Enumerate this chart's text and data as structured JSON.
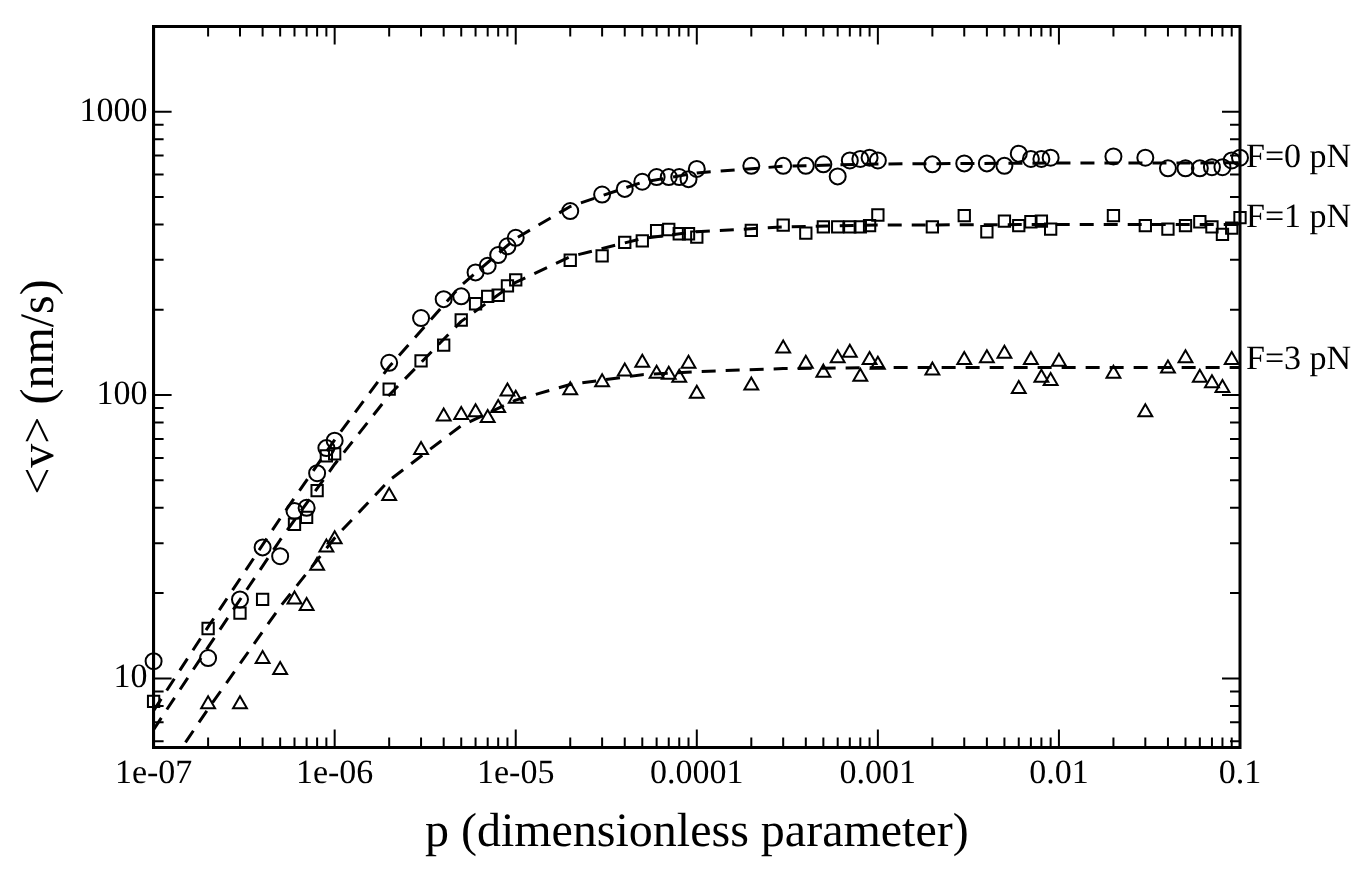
{
  "chart_data": {
    "type": "scatter",
    "xlabel": "p (dimensionless parameter)",
    "ylabel": "<v> (nm/s)",
    "log": "xy",
    "legend": "right",
    "xlim": [
      1e-07,
      0.1
    ],
    "ylim": [
      5.7,
      2000
    ],
    "xticks": [
      {
        "value": 1e-07,
        "label": "1e-07"
      },
      {
        "value": 2e-07,
        "label": null
      },
      {
        "value": 3e-07,
        "label": null
      },
      {
        "value": 4e-07,
        "label": null
      },
      {
        "value": 5e-07,
        "label": null
      },
      {
        "value": 6e-07,
        "label": null
      },
      {
        "value": 7e-07,
        "label": null
      },
      {
        "value": 8e-07,
        "label": null
      },
      {
        "value": 9e-07,
        "label": null
      },
      {
        "value": 1e-06,
        "label": "1e-06"
      },
      {
        "value": 2e-06,
        "label": null
      },
      {
        "value": 3e-06,
        "label": null
      },
      {
        "value": 4e-06,
        "label": null
      },
      {
        "value": 5e-06,
        "label": null
      },
      {
        "value": 6e-06,
        "label": null
      },
      {
        "value": 7e-06,
        "label": null
      },
      {
        "value": 8e-06,
        "label": null
      },
      {
        "value": 9e-06,
        "label": null
      },
      {
        "value": 1e-05,
        "label": "1e-05"
      },
      {
        "value": 2e-05,
        "label": null
      },
      {
        "value": 3e-05,
        "label": null
      },
      {
        "value": 4e-05,
        "label": null
      },
      {
        "value": 5e-05,
        "label": null
      },
      {
        "value": 6e-05,
        "label": null
      },
      {
        "value": 7e-05,
        "label": null
      },
      {
        "value": 8e-05,
        "label": null
      },
      {
        "value": 9e-05,
        "label": null
      },
      {
        "value": 0.0001,
        "label": "0.0001"
      },
      {
        "value": 0.0002,
        "label": null
      },
      {
        "value": 0.0003,
        "label": null
      },
      {
        "value": 0.0004,
        "label": null
      },
      {
        "value": 0.0005,
        "label": null
      },
      {
        "value": 0.0006,
        "label": null
      },
      {
        "value": 0.0007,
        "label": null
      },
      {
        "value": 0.0008,
        "label": null
      },
      {
        "value": 0.0009,
        "label": null
      },
      {
        "value": 0.001,
        "label": "0.001"
      },
      {
        "value": 0.002,
        "label": null
      },
      {
        "value": 0.003,
        "label": null
      },
      {
        "value": 0.004,
        "label": null
      },
      {
        "value": 0.005,
        "label": null
      },
      {
        "value": 0.006,
        "label": null
      },
      {
        "value": 0.007,
        "label": null
      },
      {
        "value": 0.008,
        "label": null
      },
      {
        "value": 0.009,
        "label": null
      },
      {
        "value": 0.01,
        "label": "0.01"
      },
      {
        "value": 0.02,
        "label": null
      },
      {
        "value": 0.03,
        "label": null
      },
      {
        "value": 0.04,
        "label": null
      },
      {
        "value": 0.05,
        "label": null
      },
      {
        "value": 0.06,
        "label": null
      },
      {
        "value": 0.07,
        "label": null
      },
      {
        "value": 0.08,
        "label": null
      },
      {
        "value": 0.09,
        "label": null
      },
      {
        "value": 0.1,
        "label": "0.1"
      }
    ],
    "yticks": [
      {
        "value": 6,
        "label": null
      },
      {
        "value": 7,
        "label": null
      },
      {
        "value": 8,
        "label": null
      },
      {
        "value": 9,
        "label": null
      },
      10,
      {
        "value": 20,
        "label": null
      },
      {
        "value": 30,
        "label": null
      },
      {
        "value": 40,
        "label": null
      },
      {
        "value": 50,
        "label": null
      },
      {
        "value": 60,
        "label": null
      },
      {
        "value": 70,
        "label": null
      },
      {
        "value": 80,
        "label": null
      },
      {
        "value": 90,
        "label": null
      },
      100,
      {
        "value": 200,
        "label": null
      },
      {
        "value": 300,
        "label": null
      },
      {
        "value": 400,
        "label": null
      },
      {
        "value": 500,
        "label": null
      },
      {
        "value": 600,
        "label": null
      },
      {
        "value": 700,
        "label": null
      },
      {
        "value": 800,
        "label": null
      },
      {
        "value": 900,
        "label": null
      },
      1000,
      {
        "value": 2000,
        "label": null
      }
    ],
    "series": [
      {
        "name": "F=0 pN",
        "color": "#000000",
        "marker": "circle",
        "x": [
          1e-07,
          2e-07,
          3e-07,
          4e-07,
          5e-07,
          6e-07,
          7e-07,
          8e-07,
          9e-07,
          1e-06,
          2e-06,
          3e-06,
          4e-06,
          5e-06,
          6e-06,
          7e-06,
          8e-06,
          9e-06,
          1e-05,
          2e-05,
          3e-05,
          4e-05,
          5e-05,
          6e-05,
          7e-05,
          8e-05,
          9e-05,
          0.0001,
          0.0002,
          0.0003,
          0.0004,
          0.0005,
          0.0006,
          0.0007,
          0.0008,
          0.0009,
          0.001,
          0.002,
          0.003,
          0.004,
          0.005,
          0.006,
          0.007,
          0.008,
          0.009,
          0.02,
          0.03,
          0.04,
          0.05,
          0.06,
          0.07,
          0.08,
          0.09,
          0.1
        ],
        "values": [
          11.5,
          11.8,
          19,
          29,
          27,
          39,
          40,
          53,
          65,
          69,
          130,
          187,
          218,
          223,
          271,
          286,
          312,
          335,
          359,
          446,
          510,
          534,
          566,
          588,
          588,
          588,
          578,
          628,
          644,
          644,
          644,
          652,
          591,
          673,
          681,
          688,
          673,
          652,
          657,
          657,
          644,
          711,
          681,
          681,
          688,
          695,
          688,
          631,
          631,
          631,
          637,
          637,
          673,
          688
        ]
      },
      {
        "name": "F=1 pN",
        "color": "#000000",
        "marker": "square",
        "x": [
          1e-07,
          2e-07,
          3e-07,
          4e-07,
          6e-07,
          7e-07,
          8e-07,
          9e-07,
          1e-06,
          2e-06,
          3e-06,
          4e-06,
          5e-06,
          6e-06,
          7e-06,
          8e-06,
          9e-06,
          1e-05,
          2e-05,
          3e-05,
          4e-05,
          5e-05,
          6e-05,
          7e-05,
          8e-05,
          9e-05,
          0.0001,
          0.0002,
          0.0003,
          0.0004,
          0.0005,
          0.0006,
          0.0007,
          0.0008,
          0.0009,
          0.001,
          0.002,
          0.003,
          0.004,
          0.005,
          0.006,
          0.007,
          0.008,
          0.009,
          0.02,
          0.03,
          0.04,
          0.05,
          0.06,
          0.07,
          0.08,
          0.09,
          0.1
        ],
        "values": [
          8.3,
          15,
          17,
          19,
          35,
          37,
          46,
          61,
          62,
          105,
          132,
          150,
          184,
          210,
          223,
          225,
          243,
          255,
          299,
          310,
          346,
          350,
          380,
          384,
          371,
          371,
          361,
          381,
          398,
          373,
          392,
          392,
          392,
          392,
          396,
          432,
          392,
          430,
          377,
          411,
          396,
          409,
          411,
          385,
          430,
          396,
          385,
          396,
          409,
          392,
          369,
          388,
          423
        ]
      },
      {
        "name": "F=3 pN",
        "color": "#000000",
        "marker": "triangle",
        "x": [
          2e-07,
          3e-07,
          4e-07,
          5e-07,
          6e-07,
          7e-07,
          8e-07,
          9e-07,
          1e-06,
          2e-06,
          3e-06,
          4e-06,
          5e-06,
          6e-06,
          7e-06,
          8e-06,
          9e-06,
          1e-05,
          2e-05,
          3e-05,
          4e-05,
          5e-05,
          6e-05,
          7e-05,
          8e-05,
          9e-05,
          0.0001,
          0.0002,
          0.0003,
          0.0004,
          0.0005,
          0.0006,
          0.0007,
          0.0008,
          0.0009,
          0.001,
          0.002,
          0.003,
          0.004,
          0.005,
          0.006,
          0.007,
          0.008,
          0.009,
          0.01,
          0.02,
          0.03,
          0.04,
          0.05,
          0.06,
          0.07,
          0.08,
          0.09
        ],
        "values": [
          8.1,
          8.1,
          11.7,
          10.7,
          19,
          18,
          25,
          29,
          31,
          44,
          64,
          84,
          85,
          87,
          83,
          90,
          103,
          97,
          104,
          111,
          121,
          130,
          119,
          118,
          115,
          129,
          101,
          108,
          146,
          129,
          120,
          135,
          141,
          116,
          133,
          128,
          122,
          133,
          135,
          140,
          105,
          133,
          115,
          112,
          131,
          119,
          87,
          124,
          135,
          115,
          110,
          106,
          133
        ]
      },
      {
        "type": "line",
        "color": "#000000",
        "line_style": "dashed",
        "x": [
          1e-07,
          2e-07,
          5e-07,
          1e-06,
          2e-06,
          5e-06,
          1e-05,
          2e-05,
          5e-05,
          0.0001,
          0.0003,
          0.001,
          0.01,
          0.1
        ],
        "values": [
          7.7,
          15.2,
          36.7,
          69.5,
          126,
          244,
          357,
          463,
          564,
          608,
          642,
          654,
          659,
          660
        ]
      },
      {
        "type": "line",
        "color": "#000000",
        "line_style": "dashed",
        "x": [
          1e-07,
          2e-07,
          5e-07,
          1e-06,
          2e-06,
          5e-06,
          1e-05,
          2e-05,
          5e-05,
          0.0001,
          0.0003,
          0.001,
          0.01,
          0.1
        ],
        "values": [
          6.6,
          12.9,
          30.8,
          57,
          100,
          182,
          250,
          308,
          357,
          377,
          392,
          398,
          400,
          400
        ]
      },
      {
        "type": "line",
        "color": "#000000",
        "line_style": "dashed",
        "x": [
          1.5e-07,
          2e-07,
          5e-07,
          1e-06,
          2e-06,
          5e-06,
          1e-05,
          2e-05,
          5e-05,
          0.0001,
          0.0003,
          0.001,
          0.1
        ],
        "values": [
          5.95,
          7.8,
          17.9,
          31.3,
          50,
          78,
          96,
          109,
          118,
          121,
          124,
          125,
          125
        ]
      }
    ]
  }
}
